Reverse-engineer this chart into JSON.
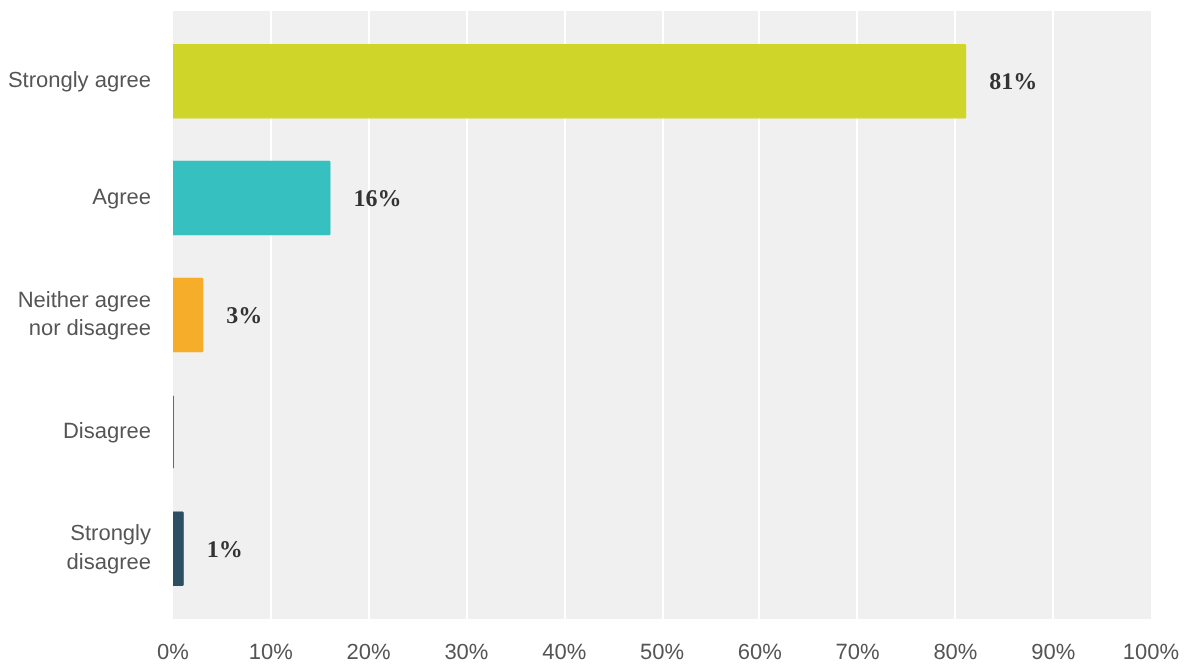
{
  "chart_data": {
    "type": "bar",
    "orientation": "horizontal",
    "categories": [
      "Strongly agree",
      "Agree",
      "Neither agree nor disagree",
      "Disagree",
      "Strongly disagree"
    ],
    "values": [
      81,
      16,
      3,
      0,
      1
    ],
    "colors": [
      "#d0d52a",
      "#36c0c0",
      "#f6ad2a",
      "#8a4f9e",
      "#2c4f63"
    ],
    "value_labels": [
      "81%",
      "16%",
      "3%",
      null,
      "1%"
    ],
    "xlim": [
      0,
      100
    ],
    "xticks": [
      {
        "value": 0,
        "label": "0%"
      },
      {
        "value": 10,
        "label": "10%"
      },
      {
        "value": 20,
        "label": "20%"
      },
      {
        "value": 30,
        "label": "30%"
      },
      {
        "value": 40,
        "label": "40%"
      },
      {
        "value": 50,
        "label": "50%"
      },
      {
        "value": 60,
        "label": "60%"
      },
      {
        "value": 70,
        "label": "70%"
      },
      {
        "value": 80,
        "label": "80%"
      },
      {
        "value": 90,
        "label": "90%"
      },
      {
        "value": 100,
        "label": "100%"
      }
    ],
    "grid": "x"
  }
}
